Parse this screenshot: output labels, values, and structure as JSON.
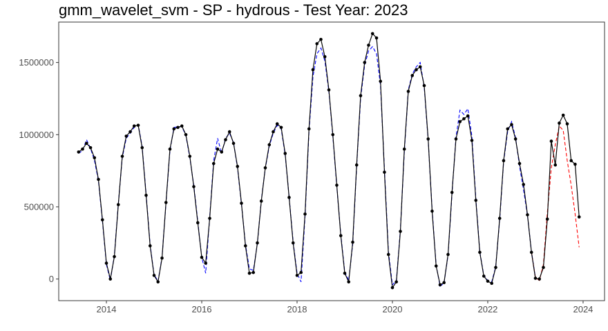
{
  "chart_data": {
    "type": "line",
    "title": "gmm_wavelet_svm - SP - hydrous - Test Year: 2023",
    "xlabel": "",
    "ylabel": "",
    "xlim": [
      2013.0,
      2024.45
    ],
    "ylim": [
      -150000,
      1780000
    ],
    "x_ticks": [
      2014,
      2016,
      2018,
      2020,
      2022,
      2024
    ],
    "x_tick_labels": [
      "2014",
      "2016",
      "2018",
      "2020",
      "2022",
      "2024"
    ],
    "y_ticks": [
      0,
      500000,
      1000000,
      1500000
    ],
    "y_tick_labels": [
      "0",
      "500000",
      "1000000",
      "1500000"
    ],
    "grid": false,
    "legend": "none",
    "colors": {
      "actual": "#000000",
      "fitted": "#0000ff",
      "forecast": "#ff0000",
      "frame": "#333333",
      "tick": "#4d4d4d"
    },
    "series": [
      {
        "type": "line-with-points",
        "color": "#000000",
        "style": "solid",
        "x": [
          2013.417,
          2013.5,
          2013.583,
          2013.667,
          2013.75,
          2013.833,
          2013.917,
          2014.0,
          2014.083,
          2014.167,
          2014.25,
          2014.333,
          2014.417,
          2014.5,
          2014.583,
          2014.667,
          2014.75,
          2014.833,
          2014.917,
          2015.0,
          2015.083,
          2015.167,
          2015.25,
          2015.333,
          2015.417,
          2015.5,
          2015.583,
          2015.667,
          2015.75,
          2015.833,
          2015.917,
          2016.0,
          2016.083,
          2016.167,
          2016.25,
          2016.333,
          2016.417,
          2016.5,
          2016.583,
          2016.667,
          2016.75,
          2016.833,
          2016.917,
          2017.0,
          2017.083,
          2017.167,
          2017.25,
          2017.333,
          2017.417,
          2017.5,
          2017.583,
          2017.667,
          2017.75,
          2017.833,
          2017.917,
          2018.0,
          2018.083,
          2018.167,
          2018.25,
          2018.333,
          2018.417,
          2018.5,
          2018.583,
          2018.667,
          2018.75,
          2018.833,
          2018.917,
          2019.0,
          2019.083,
          2019.167,
          2019.25,
          2019.333,
          2019.417,
          2019.5,
          2019.583,
          2019.667,
          2019.75,
          2019.833,
          2019.917,
          2020.0,
          2020.083,
          2020.167,
          2020.25,
          2020.333,
          2020.417,
          2020.5,
          2020.583,
          2020.667,
          2020.75,
          2020.833,
          2020.917,
          2021.0,
          2021.083,
          2021.167,
          2021.25,
          2021.333,
          2021.417,
          2021.5,
          2021.583,
          2021.667,
          2021.75,
          2021.833,
          2021.917,
          2022.0,
          2022.083,
          2022.167,
          2022.25,
          2022.333,
          2022.417,
          2022.5,
          2022.583,
          2022.667,
          2022.75,
          2022.833,
          2022.917,
          2023.0,
          2023.083,
          2023.167,
          2023.25,
          2023.333,
          2023.417,
          2023.5,
          2023.583,
          2023.667,
          2023.75,
          2023.833,
          2023.917
        ],
        "y": [
          880000,
          900000,
          940000,
          910000,
          840000,
          690000,
          410000,
          110000,
          0,
          155000,
          515000,
          850000,
          990000,
          1020000,
          1060000,
          1065000,
          910000,
          580000,
          230000,
          25000,
          -20000,
          145000,
          530000,
          900000,
          1040000,
          1050000,
          1060000,
          1000000,
          850000,
          640000,
          390000,
          150000,
          110000,
          420000,
          800000,
          900000,
          880000,
          965000,
          1020000,
          940000,
          780000,
          525000,
          230000,
          40000,
          45000,
          250000,
          540000,
          770000,
          930000,
          1020000,
          1075000,
          1050000,
          870000,
          565000,
          250000,
          25000,
          45000,
          450000,
          1040000,
          1450000,
          1630000,
          1660000,
          1540000,
          1310000,
          1000000,
          650000,
          300000,
          40000,
          -20000,
          255000,
          790000,
          1270000,
          1500000,
          1620000,
          1700000,
          1670000,
          1370000,
          740000,
          170000,
          -60000,
          -20000,
          330000,
          900000,
          1300000,
          1410000,
          1450000,
          1470000,
          1340000,
          970000,
          470000,
          90000,
          -40000,
          -25000,
          170000,
          600000,
          970000,
          1090000,
          1110000,
          1130000,
          960000,
          545000,
          185000,
          20000,
          -15000,
          -30000,
          80000,
          420000,
          820000,
          1040000,
          1070000,
          970000,
          800000,
          655000,
          445000,
          185000,
          5000,
          0,
          80000,
          415000,
          955000,
          790000,
          1080000,
          1135000,
          1075000,
          820000,
          795000,
          430000
        ]
      },
      {
        "type": "line",
        "color": "#0000ff",
        "style": "dashed",
        "x": [
          2013.417,
          2013.5,
          2013.583,
          2013.667,
          2013.75,
          2013.833,
          2013.917,
          2014.0,
          2014.083,
          2014.167,
          2014.25,
          2014.333,
          2014.417,
          2014.5,
          2014.583,
          2014.667,
          2014.75,
          2014.833,
          2014.917,
          2015.0,
          2015.083,
          2015.167,
          2015.25,
          2015.333,
          2015.417,
          2015.5,
          2015.583,
          2015.667,
          2015.75,
          2015.833,
          2015.917,
          2016.0,
          2016.083,
          2016.167,
          2016.25,
          2016.333,
          2016.417,
          2016.5,
          2016.583,
          2016.667,
          2016.75,
          2016.833,
          2016.917,
          2017.0,
          2017.083,
          2017.167,
          2017.25,
          2017.333,
          2017.417,
          2017.5,
          2017.583,
          2017.667,
          2017.75,
          2017.833,
          2017.917,
          2018.0,
          2018.083,
          2018.167,
          2018.25,
          2018.333,
          2018.417,
          2018.5,
          2018.583,
          2018.667,
          2018.75,
          2018.833,
          2018.917,
          2019.0,
          2019.083,
          2019.167,
          2019.25,
          2019.333,
          2019.417,
          2019.5,
          2019.583,
          2019.667,
          2019.75,
          2019.833,
          2019.917,
          2020.0,
          2020.083,
          2020.167,
          2020.25,
          2020.333,
          2020.417,
          2020.5,
          2020.583,
          2020.667,
          2020.75,
          2020.833,
          2020.917,
          2021.0,
          2021.083,
          2021.167,
          2021.25,
          2021.333,
          2021.417,
          2021.5,
          2021.583,
          2021.667,
          2021.75,
          2021.833,
          2021.917,
          2022.0,
          2022.083,
          2022.167,
          2022.25,
          2022.333,
          2022.417,
          2022.5,
          2022.583,
          2022.667,
          2022.75,
          2022.833,
          2022.917,
          2023.0
        ],
        "y": [
          870000,
          890000,
          965000,
          905000,
          820000,
          680000,
          400000,
          100000,
          -10000,
          165000,
          520000,
          840000,
          975000,
          1010000,
          1050000,
          1070000,
          920000,
          590000,
          240000,
          30000,
          -15000,
          150000,
          525000,
          890000,
          1050000,
          1055000,
          1055000,
          995000,
          840000,
          650000,
          400000,
          150000,
          40000,
          430000,
          820000,
          975000,
          870000,
          975000,
          1010000,
          945000,
          770000,
          520000,
          240000,
          70000,
          60000,
          245000,
          545000,
          765000,
          920000,
          1010000,
          1065000,
          1040000,
          860000,
          570000,
          260000,
          40000,
          -20000,
          430000,
          1020000,
          1400000,
          1560000,
          1600000,
          1510000,
          1300000,
          990000,
          640000,
          310000,
          50000,
          -10000,
          240000,
          780000,
          1250000,
          1480000,
          1580000,
          1610000,
          1560000,
          1340000,
          760000,
          190000,
          -40000,
          -10000,
          340000,
          880000,
          1310000,
          1420000,
          1470000,
          1500000,
          1330000,
          960000,
          480000,
          95000,
          -50000,
          -30000,
          165000,
          590000,
          980000,
          1170000,
          1140000,
          1180000,
          990000,
          560000,
          190000,
          25000,
          -10000,
          -20000,
          85000,
          410000,
          810000,
          1020000,
          1090000,
          980000,
          780000,
          620000,
          440000,
          190000,
          10000
        ]
      },
      {
        "type": "line",
        "color": "#ff0000",
        "style": "dashed",
        "x": [
          2022.917,
          2023.0,
          2023.083,
          2023.167,
          2023.25,
          2023.333,
          2023.417,
          2023.5,
          2023.583,
          2023.667,
          2023.75,
          2023.833,
          2023.917
        ],
        "y": [
          185000,
          10000,
          -10000,
          100000,
          460000,
          770000,
          930000,
          1060000,
          1030000,
          820000,
          650000,
          450000,
          220000
        ]
      }
    ]
  }
}
